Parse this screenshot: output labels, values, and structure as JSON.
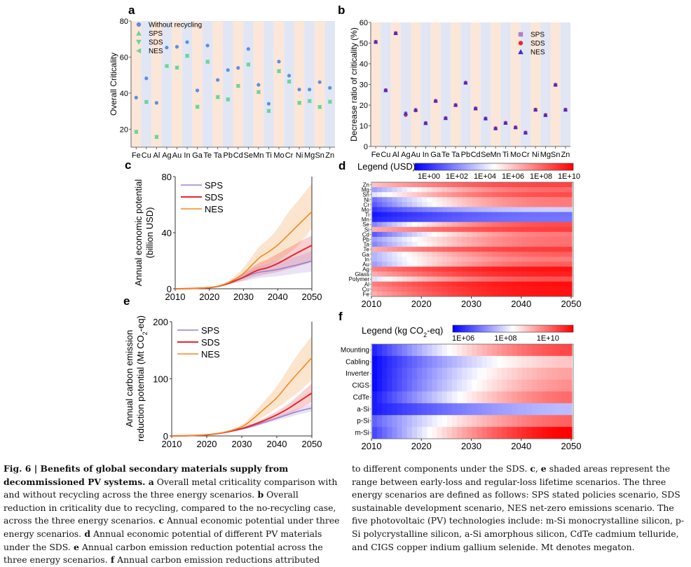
{
  "figure": {
    "number_label": "Fig. 6",
    "title": "Benefits of global secondary materials supply from decommissioned PV systems."
  },
  "colors": {
    "band_orange": "#fbe6d8",
    "band_blue": "#e1e6f4",
    "without": "#5b8fe0",
    "green": "#6dd394",
    "sps": "#9b7fd1",
    "sds": "#e8262b",
    "nes": "#f28a1f",
    "b_sps": "#b07ec8",
    "b_sds": "#e8262b",
    "b_nes": "#3b2fd6",
    "hm_low": "#0000ff",
    "hm_mid": "#ffffff",
    "hm_high": "#ff0000"
  },
  "chart_data": [
    {
      "panel": "a",
      "type": "scatter",
      "ylabel": "Overall Criticality",
      "ylim": [
        10,
        80
      ],
      "yticks": [
        20,
        40,
        60,
        80
      ],
      "categories": [
        "Fe",
        "Cu",
        "Al",
        "Ag",
        "Au",
        "In",
        "Ga",
        "Te",
        "Ta",
        "Pb",
        "Cd",
        "Se",
        "Mn",
        "Ti",
        "Mo",
        "Cr",
        "Ni",
        "Mg",
        "Sn",
        "Zn"
      ],
      "band_pattern": [
        "orange",
        "blue",
        "orange",
        "blue",
        "orange",
        "blue",
        "orange",
        "blue",
        "orange",
        "blue",
        "orange",
        "blue",
        "orange",
        "blue",
        "orange",
        "blue",
        "orange",
        "blue",
        "orange",
        "blue"
      ],
      "legend": [
        "Without recycling",
        "SPS",
        "SDS",
        "NES"
      ],
      "legend_position": "top-left",
      "series": [
        {
          "name": "Without recycling",
          "marker": "circle",
          "values": [
            37.5,
            48.2,
            34.6,
            65.3,
            65.7,
            68.3,
            41.5,
            66.4,
            47.3,
            52.8,
            54.0,
            64.5,
            44.6,
            34.1,
            57.5,
            49.7,
            42.0,
            42.0,
            46.1,
            42.9
          ]
        },
        {
          "name": "SPS",
          "marker": "triangle-up",
          "values": [
            18.5,
            35.1,
            15.7,
            55.2,
            54.2,
            60.7,
            32.4,
            57.4,
            37.8,
            36.5,
            44.0,
            55.9,
            40.6,
            30.1,
            52.2,
            46.4,
            34.6,
            35.6,
            32.3,
            35.2
          ]
        },
        {
          "name": "SDS",
          "marker": "triangle-down",
          "values": [
            18.5,
            35.1,
            15.7,
            54.9,
            54.1,
            60.7,
            32.4,
            57.4,
            37.8,
            36.5,
            44.0,
            55.8,
            40.6,
            30.1,
            52.2,
            46.4,
            34.6,
            35.6,
            32.3,
            35.2
          ]
        },
        {
          "name": "NES",
          "marker": "triangle-left",
          "values": [
            18.5,
            35.1,
            15.7,
            55.0,
            54.2,
            60.7,
            32.4,
            57.4,
            37.8,
            36.5,
            44.0,
            55.9,
            40.6,
            30.1,
            52.2,
            46.4,
            34.6,
            35.6,
            32.3,
            35.2
          ]
        }
      ]
    },
    {
      "panel": "b",
      "type": "scatter",
      "ylabel": "Decrease ratio of criticality (%)",
      "ylim": [
        0,
        60
      ],
      "yticks": [
        0,
        10,
        20,
        30,
        40,
        50,
        60
      ],
      "categories": [
        "Fe",
        "Cu",
        "Al",
        "Ag",
        "Au",
        "In",
        "Ga",
        "Te",
        "Ta",
        "Pb",
        "Cd",
        "Se",
        "Mn",
        "Ti",
        "Mo",
        "Cr",
        "Ni",
        "Mg",
        "Sn",
        "Zn"
      ],
      "legend": [
        "SPS",
        "SDS",
        "NES"
      ],
      "legend_position": "top-right",
      "series": [
        {
          "name": "SPS",
          "marker": "square",
          "values": [
            50.6,
            27.2,
            54.8,
            15.9,
            17.6,
            11.3,
            22.0,
            13.7,
            20.0,
            30.8,
            18.4,
            13.5,
            8.8,
            11.4,
            9.2,
            6.7,
            17.8,
            15.2,
            29.8,
            17.8
          ]
        },
        {
          "name": "SDS",
          "marker": "circle",
          "values": [
            50.6,
            27.2,
            54.8,
            15.2,
            17.4,
            11.3,
            22.0,
            13.7,
            20.0,
            30.8,
            18.4,
            13.5,
            8.7,
            11.4,
            9.2,
            6.7,
            17.8,
            15.2,
            29.8,
            17.8
          ]
        },
        {
          "name": "NES",
          "marker": "triangle-up",
          "values": [
            50.6,
            27.2,
            54.8,
            16.1,
            17.8,
            11.3,
            22.1,
            13.7,
            20.1,
            30.9,
            18.4,
            13.6,
            8.8,
            11.4,
            9.3,
            6.7,
            17.8,
            15.2,
            29.9,
            17.8
          ]
        }
      ]
    },
    {
      "panel": "c",
      "type": "line",
      "ylabel_lines": [
        "Annual economic potential",
        "(billion USD)"
      ],
      "xlim": [
        2010,
        2050
      ],
      "ylim": [
        0,
        80
      ],
      "xticks": [
        2010,
        2020,
        2030,
        2040,
        2050
      ],
      "yticks": [
        0,
        40,
        80
      ],
      "legend": [
        "SPS",
        "SDS",
        "NES"
      ],
      "legend_position": "top-left",
      "x": [
        2010,
        2015,
        2020,
        2023,
        2025,
        2027,
        2030,
        2033,
        2035,
        2037,
        2040,
        2043,
        2046,
        2050
      ],
      "series": [
        {
          "name": "SPS",
          "values": [
            0,
            0.2,
            0.8,
            2,
            3.2,
            5,
            8,
            10.8,
            12,
            12.6,
            13.8,
            15.5,
            17.2,
            19.8
          ],
          "lower": [
            0,
            0.2,
            0.7,
            1.7,
            2.6,
            3.8,
            5.5,
            7,
            7.8,
            8.3,
            9,
            10,
            11,
            12.2
          ],
          "upper": [
            0,
            0.2,
            0.9,
            2.3,
            3.7,
            6,
            10.5,
            14.5,
            16,
            17.5,
            19.5,
            21.5,
            23.5,
            27
          ]
        },
        {
          "name": "SDS",
          "values": [
            0,
            0.2,
            0.8,
            2,
            3.4,
            5.2,
            8.2,
            12,
            13.8,
            15,
            18,
            22,
            26,
            31
          ],
          "lower": [
            0,
            0.2,
            0.7,
            1.7,
            2.7,
            4,
            6,
            8.5,
            9.5,
            10.5,
            12,
            14,
            16,
            19
          ],
          "upper": [
            0,
            0.2,
            0.9,
            2.4,
            4,
            6.5,
            11,
            16,
            19,
            21,
            25,
            29,
            33,
            38
          ]
        },
        {
          "name": "NES",
          "values": [
            0,
            0.2,
            0.9,
            2.2,
            3.8,
            6.2,
            11,
            18.2,
            22.8,
            25.8,
            31.2,
            38.2,
            45.5,
            55
          ]
        },
        {
          "name": "NES-range",
          "lower": [
            0,
            0.2,
            0.8,
            1.8,
            3,
            4.8,
            8,
            12,
            14.5,
            16.5,
            20,
            25,
            31,
            43
          ],
          "upper": [
            0,
            0.2,
            1,
            2.6,
            4.8,
            8,
            15,
            25,
            31,
            35,
            43,
            54,
            63,
            75
          ]
        }
      ]
    },
    {
      "panel": "d",
      "type": "heatmap",
      "title": "Legend (USD)",
      "colorbar_ticks": [
        "1E+00",
        "1E+02",
        "1E+04",
        "1E+06",
        "1E+08",
        "1E+10"
      ],
      "colorbar_log_range": [
        -1,
        10.3
      ],
      "xlim": [
        2010,
        2050
      ],
      "xticks": [
        2010,
        2020,
        2030,
        2040,
        2050
      ],
      "rows": [
        "Zn",
        "Mg",
        "Sn",
        "Ni",
        "Cr",
        "Mo",
        "Ti",
        "Mn",
        "Se",
        "Si",
        "Cd",
        "Pb",
        "Ta",
        "Te",
        "Ga",
        "In",
        "Au",
        "Ag",
        "Glass",
        "Polymer",
        "Al",
        "Cu",
        "Fe"
      ],
      "row_log_start": [
        6.0,
        2.5,
        4.0,
        1.5,
        1.0,
        0.2,
        -0.5,
        -0.2,
        2.0,
        6.5,
        1.0,
        2.5,
        2.0,
        6.5,
        3.0,
        3.0,
        2.5,
        7.5,
        6.5,
        4.0,
        7.5,
        7.0,
        6.5
      ],
      "row_log_end": [
        8.8,
        8.0,
        8.6,
        7.6,
        7.6,
        3.6,
        1.5,
        1.6,
        8.6,
        8.9,
        7.6,
        7.8,
        7.8,
        9.0,
        8.2,
        7.6,
        8.2,
        9.9,
        9.6,
        8.5,
        10.0,
        9.9,
        9.9
      ]
    },
    {
      "panel": "e",
      "type": "line",
      "ylabel_lines": [
        "Annual carbon emission",
        "reduction potential (Mt CO₂-eq)"
      ],
      "xlim": [
        2010,
        2050
      ],
      "ylim": [
        0,
        200
      ],
      "xticks": [
        2010,
        2020,
        2030,
        2040,
        2050
      ],
      "yticks": [
        0,
        100,
        200
      ],
      "legend": [
        "SPS",
        "SDS",
        "NES"
      ],
      "legend_position": "top-left",
      "x": [
        2010,
        2015,
        2020,
        2025,
        2030,
        2033,
        2036,
        2040,
        2043,
        2046,
        2050
      ],
      "series": [
        {
          "name": "SPS",
          "values": [
            0,
            0.5,
            2,
            6,
            12,
            17,
            23,
            31,
            37,
            43,
            49
          ],
          "lower": [
            0,
            0.5,
            2,
            5.5,
            11,
            15,
            20,
            27,
            32,
            37,
            43
          ],
          "upper": [
            0,
            0.5,
            2,
            6.5,
            13,
            18.5,
            25,
            34,
            41,
            48,
            57
          ]
        },
        {
          "name": "SDS",
          "values": [
            0,
            0.5,
            2,
            6,
            13,
            19,
            26,
            37,
            47,
            59,
            75
          ],
          "lower": [
            0,
            0.5,
            2,
            5.5,
            11.5,
            16.5,
            22,
            31,
            38,
            46,
            59
          ],
          "upper": [
            0,
            0.5,
            2,
            6.5,
            14.5,
            21.5,
            30,
            43,
            55,
            70,
            92
          ]
        },
        {
          "name": "NES",
          "values": [
            0,
            0.5,
            2,
            6.5,
            16,
            29,
            45,
            67,
            89,
            110,
            137
          ],
          "lower": [
            0,
            0.5,
            2,
            5.8,
            13,
            22,
            33,
            49,
            62,
            76,
            98
          ],
          "upper": [
            0,
            0.5,
            2,
            7.5,
            20,
            37,
            58,
            87,
            115,
            143,
            175
          ]
        }
      ]
    },
    {
      "panel": "f",
      "type": "heatmap",
      "title": "Legend (kg CO₂-eq)",
      "colorbar_ticks": [
        "1E+06",
        "1E+08",
        "1E+10"
      ],
      "colorbar_log_range": [
        5.5,
        11.2
      ],
      "xlim": [
        2010,
        2050
      ],
      "xticks": [
        2010,
        2020,
        2030,
        2040,
        2050
      ],
      "rows": [
        "Mounting",
        "Cabling",
        "Inverter",
        "CIGS",
        "CdTe",
        "a-Si",
        "p-Si",
        "m-Si"
      ],
      "row_log_start": [
        5.9,
        5.6,
        5.6,
        5.6,
        5.8,
        5.8,
        6.6,
        6.3
      ],
      "row_log_end": [
        10.4,
        9.0,
        9.4,
        9.6,
        10.0,
        7.6,
        10.1,
        11.2
      ]
    }
  ],
  "panel_labels": {
    "a": "a",
    "b": "b",
    "c": "c",
    "d": "d",
    "e": "e",
    "f": "f"
  },
  "legend_titles": {
    "d_prefix": "Legend (USD)",
    "f_prefix": "Legend (kg CO",
    "f_sub": "2",
    "f_suffix": "-eq)"
  },
  "e_ylabel": {
    "line1": "Annual carbon emission",
    "line2_prefix": "reduction potential (Mt CO",
    "line2_sub": "2",
    "line2_suffix": "-eq)"
  },
  "caption": {
    "left": [
      {
        "b": "Fig. 6 | Benefits of global secondary materials supply from decommissioned PV systems.",
        "t": ""
      },
      {
        "b": " a",
        "t": " Overall metal criticality comparison with and without recycling across the three energy scenarios."
      },
      {
        "b": " b",
        "t": " Overall reduction in criticality due to recycling, compared to the no-recycling case, across the three energy scenarios."
      },
      {
        "b": " c",
        "t": " Annual economic potential under three energy scenarios."
      },
      {
        "b": " d",
        "t": " Annual economic potential of different PV materials under the SDS."
      },
      {
        "b": " e",
        "t": " Annual carbon emission reduction potential across the three energy scenarios."
      },
      {
        "b": " f",
        "t": " Annual carbon emission reductions attributed"
      }
    ],
    "right": [
      {
        "b": "",
        "t": "to different components under the SDS. "
      },
      {
        "b": "c",
        "t": ", "
      },
      {
        "b": "e",
        "t": " shaded areas represent the range between early-loss and regular-loss lifetime scenarios. The three energy scenarios are defined as follows: SPS stated policies scenario, SDS sustainable development scenario, NES net-zero emissions scenario. The five photovoltaic (PV) technologies include: m-Si monocrystalline silicon, p-Si polycrystalline silicon, a-Si amorphous silicon, CdTe cadmium telluride, and CIGS copper indium gallium selenide. Mt denotes megaton."
      }
    ]
  }
}
